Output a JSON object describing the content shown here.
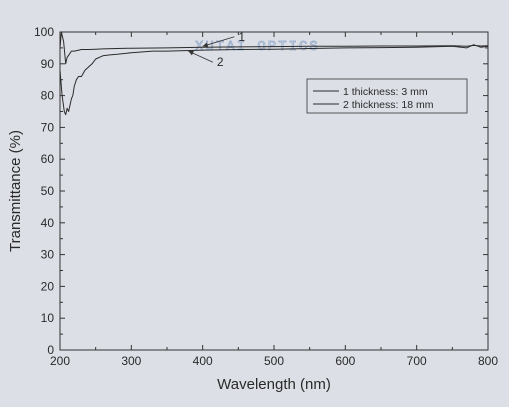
{
  "chart_data": {
    "type": "line",
    "xlabel": "Wavelength (nm)",
    "ylabel": "Transmittance (%)",
    "xlim": [
      200,
      800
    ],
    "ylim": [
      0,
      100
    ],
    "xticks": [
      200,
      300,
      400,
      500,
      600,
      700,
      800
    ],
    "yticks": [
      0,
      10,
      20,
      30,
      40,
      50,
      60,
      70,
      80,
      90,
      100
    ],
    "grid": false,
    "legend_position": "top-right",
    "series": [
      {
        "name": "1 thickness: 3 mm",
        "label": "1",
        "x": [
          200,
          202,
          205,
          208,
          210,
          213,
          216,
          220,
          225,
          230,
          240,
          250,
          260,
          280,
          300,
          350,
          400,
          450,
          500,
          550,
          600,
          650,
          700,
          750,
          770,
          780,
          790,
          800
        ],
        "y": [
          95,
          100,
          97,
          90,
          92,
          93,
          94,
          94,
          94.2,
          94.5,
          94.5,
          94.6,
          94.7,
          94.8,
          94.9,
          95.0,
          95.2,
          95.3,
          95.4,
          95.5,
          95.5,
          95.6,
          95.6,
          95.7,
          95.5,
          95.8,
          95.6,
          95.7
        ]
      },
      {
        "name": "2 thickness: 18 mm",
        "label": "2",
        "x": [
          200,
          203,
          206,
          208,
          210,
          212,
          214,
          216,
          218,
          220,
          223,
          226,
          230,
          235,
          240,
          245,
          250,
          260,
          270,
          280,
          300,
          330,
          350,
          400,
          450,
          500,
          550,
          600,
          650,
          700,
          750,
          770,
          780,
          790,
          800
        ],
        "y": [
          88,
          80,
          75,
          74,
          76,
          75,
          77,
          79,
          80,
          83,
          85,
          86,
          86,
          88,
          89,
          90,
          91.5,
          92.5,
          92.8,
          93,
          93.5,
          94,
          94,
          94.3,
          94.5,
          94.6,
          94.8,
          95,
          95.1,
          95.2,
          95.5,
          95,
          96,
          95.2,
          95.5
        ]
      }
    ],
    "annotations": [
      {
        "text": "1",
        "x": 450,
        "y": 98.5,
        "arrow_to": [
          400,
          95.5
        ]
      },
      {
        "text": "2",
        "x": 420,
        "y": 90.5,
        "arrow_to": [
          380,
          94
        ]
      }
    ]
  },
  "watermark": "XUTAI  OPTICS",
  "colors": {
    "line": "#2b2b2b",
    "axis": "#333333",
    "background": "#dcdfe6"
  }
}
